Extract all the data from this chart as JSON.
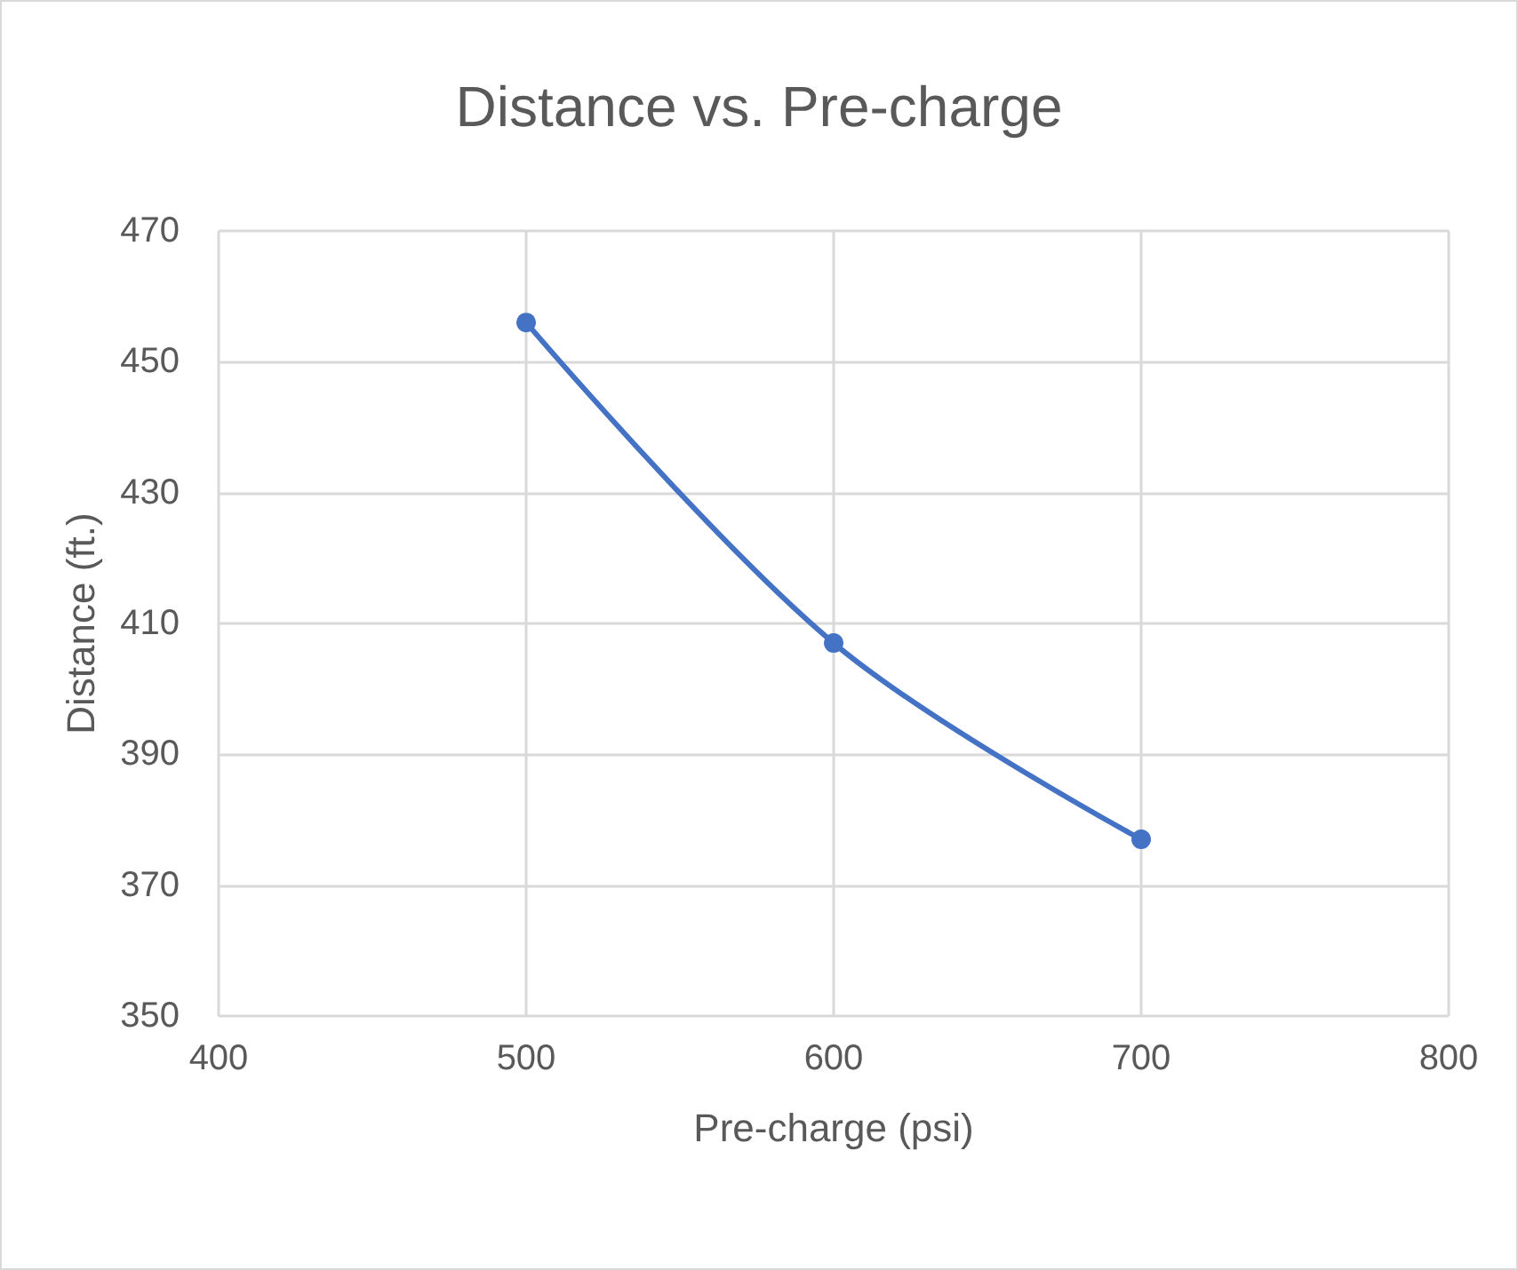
{
  "chart_data": {
    "type": "line",
    "title": "Distance vs. Pre-charge",
    "xlabel": "Pre-charge (psi)",
    "ylabel": "Distance (ft.)",
    "x": [
      500,
      600,
      700
    ],
    "series": [
      {
        "color": "#4472c4",
        "values": [
          456,
          407,
          377
        ]
      }
    ],
    "xlim": [
      400,
      800
    ],
    "xticks": [
      400,
      500,
      600,
      700,
      800
    ],
    "ylim": [
      350,
      470
    ],
    "yticks": [
      350,
      370,
      390,
      410,
      430,
      450,
      470
    ],
    "grid": true,
    "marker": "circle",
    "line_style": "solid"
  }
}
